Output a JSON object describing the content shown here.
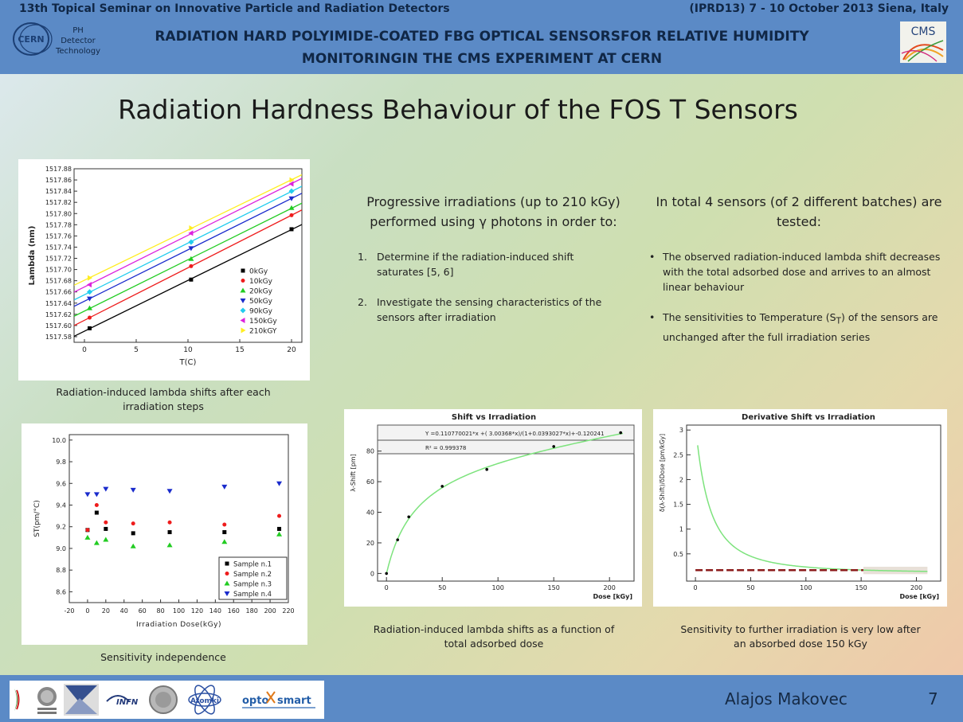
{
  "header": {
    "seminar": "13th Topical Seminar on Innovative Particle and Radiation Detectors",
    "dates": "(IPRD13) 7 - 10 October 2013  Siena, Italy",
    "cern_label": "CERN",
    "ph_line1": "PH",
    "ph_line2": "Detector",
    "ph_line3": "Technology",
    "cms_label": "CMS",
    "title_line1": "RADIATION HARD POLYIMIDE-COATED FBG OPTICAL SENSORSFOR RELATIVE HUMIDITY",
    "title_line2": "MONITORINGIN THE CMS EXPERIMENT AT CERN"
  },
  "slide_title": "Radiation Hardness Behaviour of the FOS T Sensors",
  "col1": {
    "heading": "Progressive irradiations (up to 210 kGy) performed using γ photons in order to:",
    "items": [
      {
        "num": "1.",
        "text": "Determine if  the radiation-induced shift saturates [5, 6]"
      },
      {
        "num": "2.",
        "text": "Investigate the sensing characteristics of the sensors after irradiation"
      }
    ]
  },
  "col2": {
    "heading": "In total 4 sensors (of 2 different batches) are tested:",
    "item1": "The observed radiation-induced lambda shift decreases with the total adsorbed dose and arrives to an almost linear behaviour",
    "item2_pre": "The sensitivities to Temperature (S",
    "item2_sub": "T",
    "item2_post": ") of the sensors are unchanged after the full irradiation series"
  },
  "captions": {
    "chart1": "Radiation-induced lambda shifts after each irradiation steps",
    "chart2": "Sensitivity independence",
    "chart3": "Radiation-induced lambda shifts as a function of total adsorbed dose",
    "chart4": "Sensitivity to further irradiation is very low after an absorbed dose 150 kGy"
  },
  "footer": {
    "author": "Alajos Makovec",
    "page": "7",
    "logos": [
      "INFN",
      "Atomki",
      "opto",
      "smart"
    ]
  },
  "colors": {
    "header_bg": "#5b8ac6",
    "header_text": "#102746",
    "fit_green": "#7de37d",
    "dash_red": "#8b1a1a"
  },
  "chart_data": [
    {
      "type": "scatter",
      "xlabel": "T(C)",
      "ylabel": "Lambda (nm)",
      "xlim": [
        -1,
        21
      ],
      "ylim": [
        1517.57,
        1517.88
      ],
      "xticks": [
        0,
        5,
        10,
        15,
        20
      ],
      "yticks": [
        1517.58,
        1517.6,
        1517.62,
        1517.64,
        1517.66,
        1517.68,
        1517.7,
        1517.72,
        1517.74,
        1517.76,
        1517.78,
        1517.8,
        1517.82,
        1517.84,
        1517.86,
        1517.88
      ],
      "legend_position": "bottom-right",
      "series": [
        {
          "name": "0kGy",
          "color": "#000000",
          "marker": "square",
          "x": [
            0.5,
            10.3,
            20
          ],
          "y": [
            1517.595,
            1517.682,
            1517.772
          ]
        },
        {
          "name": "10kGy",
          "color": "#ee1c1c",
          "marker": "circle",
          "x": [
            0.5,
            10.3,
            20
          ],
          "y": [
            1517.614,
            1517.706,
            1517.797
          ]
        },
        {
          "name": "20kGy",
          "color": "#22cc22",
          "marker": "triangle",
          "x": [
            0.5,
            10.3,
            20
          ],
          "y": [
            1517.631,
            1517.719,
            1517.81
          ]
        },
        {
          "name": "50kGy",
          "color": "#1a2bcc",
          "marker": "triangle-down",
          "x": [
            0.5,
            10.3,
            20
          ],
          "y": [
            1517.648,
            1517.738,
            1517.827
          ]
        },
        {
          "name": "90kGy",
          "color": "#22ccee",
          "marker": "diamond",
          "x": [
            0.5,
            10.3,
            20
          ],
          "y": [
            1517.66,
            1517.749,
            1517.84
          ]
        },
        {
          "name": "150kGy",
          "color": "#dd22dd",
          "marker": "triangle-left",
          "x": [
            0.5,
            10.3,
            20
          ],
          "y": [
            1517.673,
            1517.765,
            1517.853
          ]
        },
        {
          "name": "210kGY",
          "color": "#ffee22",
          "marker": "triangle-right",
          "x": [
            0.5,
            10.3,
            20
          ],
          "y": [
            1517.685,
            1517.774,
            1517.86
          ]
        }
      ]
    },
    {
      "type": "scatter",
      "xlabel": "Irradiation Dose(kGy)",
      "ylabel": "ST(pm/°C)",
      "xlim": [
        -20,
        220
      ],
      "ylim": [
        8.5,
        10.05
      ],
      "xticks": [
        -20,
        0,
        20,
        40,
        60,
        80,
        100,
        120,
        140,
        160,
        180,
        200,
        220
      ],
      "yticks": [
        8.6,
        8.8,
        9.0,
        9.2,
        9.4,
        9.6,
        9.8,
        10.0
      ],
      "legend_position": "bottom-right",
      "series": [
        {
          "name": "Sample n.1",
          "color": "#000000",
          "marker": "square",
          "x": [
            0,
            10,
            20,
            50,
            90,
            150,
            210
          ],
          "y": [
            9.17,
            9.33,
            9.18,
            9.14,
            9.15,
            9.15,
            9.18
          ]
        },
        {
          "name": "Sample n.2",
          "color": "#ee1c1c",
          "marker": "circle",
          "x": [
            0,
            10,
            20,
            50,
            90,
            150,
            210
          ],
          "y": [
            9.17,
            9.4,
            9.24,
            9.23,
            9.24,
            9.22,
            9.3
          ]
        },
        {
          "name": "Sample n.3",
          "color": "#22cc22",
          "marker": "triangle",
          "x": [
            0,
            10,
            20,
            50,
            90,
            150,
            210
          ],
          "y": [
            9.1,
            9.05,
            9.08,
            9.02,
            9.03,
            9.06,
            9.13
          ]
        },
        {
          "name": "Sample n.4",
          "color": "#1a2bcc",
          "marker": "triangle-down",
          "x": [
            0,
            10,
            20,
            50,
            90,
            150,
            210
          ],
          "y": [
            9.5,
            9.5,
            9.55,
            9.54,
            9.53,
            9.57,
            9.6
          ]
        }
      ]
    },
    {
      "type": "scatter",
      "title": "Shift vs Irradiation",
      "xlabel": "Dose [kGy]",
      "ylabel": "λ-Shift [pm]",
      "xlim": [
        -8,
        222
      ],
      "ylim": [
        -5,
        97
      ],
      "xticks": [
        0,
        50,
        100,
        150,
        200
      ],
      "yticks": [
        0,
        20,
        40,
        60,
        80
      ],
      "fit_text": "Y =0.110770021*x +( 3.00368*x)/(1+0.0393027*x)+-0.120241",
      "r2_text": "R² =  0.999378",
      "fit": {
        "a": 0.110770021,
        "b": 3.00368,
        "c": 0.0393027,
        "d": -0.120241
      },
      "series": [
        {
          "name": "",
          "x": [
            0,
            10,
            20,
            50,
            90,
            150,
            210
          ],
          "y": [
            0,
            22,
            37,
            57,
            68,
            83,
            92
          ]
        }
      ]
    },
    {
      "type": "line",
      "title": "Derivative Shift vs Irradiation",
      "xlabel": "Dose [kGy]",
      "ylabel": "δ(λ-Shift)/δDose [pm/kGy]",
      "xlim": [
        -8,
        222
      ],
      "ylim": [
        -0.05,
        3.1
      ],
      "xticks": [
        0,
        50,
        100,
        150,
        200
      ],
      "yticks": [
        0.5,
        1,
        1.5,
        2,
        2.5,
        3
      ],
      "curve_x_range": [
        2,
        210
      ],
      "dash_level": 0.17,
      "dash_x_range": [
        0,
        152
      ],
      "shaded_x_range": [
        152,
        210
      ]
    }
  ]
}
